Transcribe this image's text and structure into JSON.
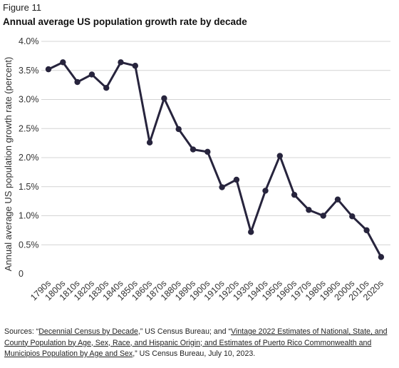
{
  "figure_label": "Figure 11",
  "figure_title": "Annual average US population growth rate by decade",
  "chart_data": {
    "type": "line",
    "title": "Annual average US population growth rate by decade",
    "xlabel": "",
    "ylabel": "Annual average US population growth rate (percent)",
    "ylim": [
      0,
      4.0
    ],
    "yticks": [
      0,
      0.5,
      1.0,
      1.5,
      2.0,
      2.5,
      3.0,
      3.5,
      4.0
    ],
    "ytick_labels": [
      "0",
      "0.5%",
      "1.0%",
      "1.5%",
      "2.0%",
      "2.5%",
      "3.0%",
      "3.5%",
      "4.0%"
    ],
    "grid": "horizontal",
    "line_color": "#27243d",
    "categories": [
      "1790s",
      "1800s",
      "1810s",
      "1820s",
      "1830s",
      "1840s",
      "1850s",
      "1860s",
      "1870s",
      "1880s",
      "1890s",
      "1900s",
      "1910s",
      "1920s",
      "1930s",
      "1940s",
      "1950s",
      "1960s",
      "1970s",
      "1980s",
      "1990s",
      "2000s",
      "2010s",
      "2020s"
    ],
    "values": [
      3.52,
      3.64,
      3.3,
      3.43,
      3.2,
      3.64,
      3.58,
      2.26,
      3.02,
      2.49,
      2.14,
      2.1,
      1.49,
      1.62,
      0.72,
      1.43,
      2.03,
      1.36,
      1.1,
      1.0,
      1.28,
      0.99,
      0.75,
      0.29
    ]
  },
  "sources": {
    "prefix": "Sources: “",
    "link1": "Decennial Census by Decade",
    "mid1": ",” US Census Bureau; and “",
    "link2": "Vintage 2022 Estimates of National, State, and County Population by Age, Sex, Race, and Hispanic Origin; and Estimates of Puerto Rico Commonwealth and Municipios Population by Age and Sex",
    "suffix": ",” US Census Bureau, July 10, 2023."
  }
}
